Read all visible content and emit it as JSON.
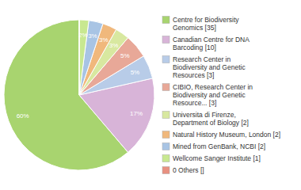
{
  "chart_data": {
    "type": "pie",
    "categories": [
      "Centre for Biodiversity\nGenomics [35]",
      "Canadian Centre for DNA\nBarcoding [10]",
      "Research Center in\nBiodiversity and Genetic\nResources [3]",
      "CIBIO, Research Center in\nBiodiversity and Genetic\nResource... [3]",
      "Universita di Firenze,\nDepartment of Biology [2]",
      "Natural History Museum, London [2]",
      "Mined from GenBank, NCBI [2]",
      "Wellcome Sanger Institute [1]",
      "0 Others []"
    ],
    "values": [
      60,
      17,
      5,
      5,
      3,
      3,
      3,
      2,
      0
    ],
    "value_labels": [
      "60%",
      "17%",
      "5%",
      "5%",
      "3%",
      "3%",
      "3%",
      "2%",
      null
    ],
    "colors": [
      "#a8d46f",
      "#d8b4d8",
      "#b8cce8",
      "#e8a898",
      "#d8e8a0",
      "#f0b87c",
      "#a8c4e4",
      "#c8e890",
      "#e89080"
    ],
    "legend": "right",
    "data_labels": true
  }
}
